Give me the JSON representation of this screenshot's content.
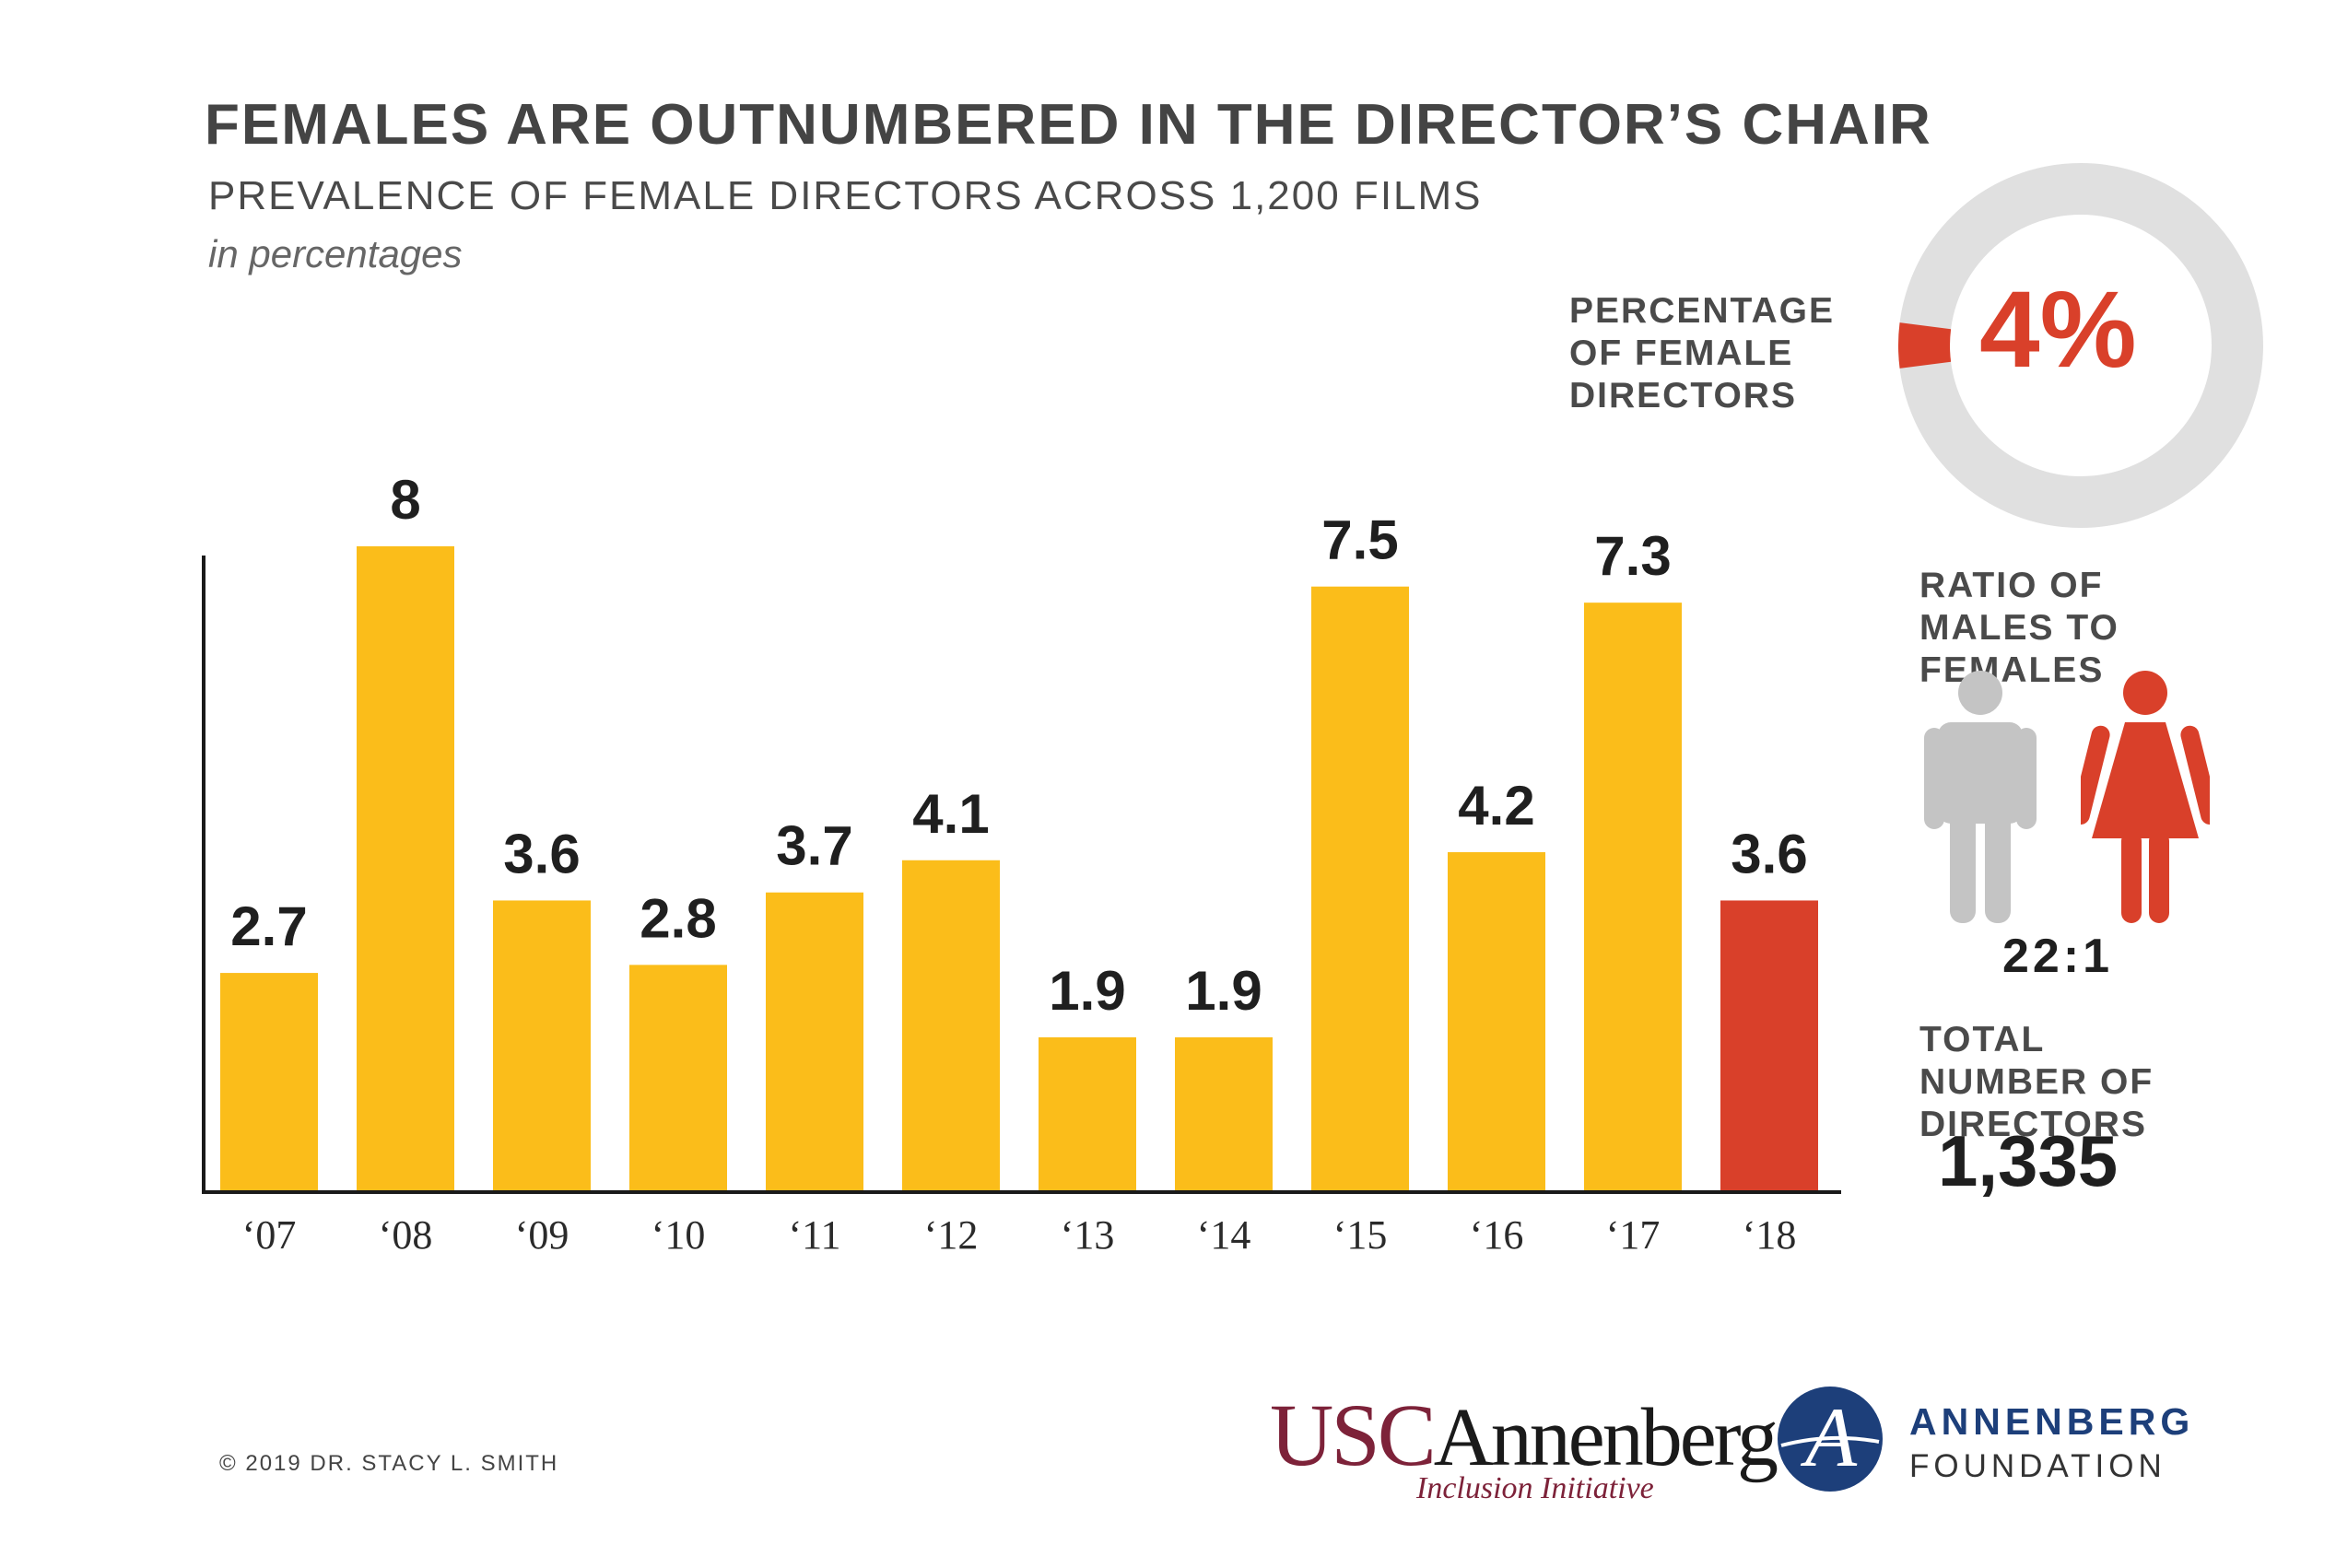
{
  "chart_data": {
    "type": "bar",
    "title": "FEMALES ARE OUTNUMBERED IN THE DIRECTOR’S CHAIR",
    "subtitle": "PREVALENCE OF FEMALE DIRECTORS ACROSS 1,200 FILMS",
    "unit_note": "in percentages",
    "categories": [
      "‘07",
      "‘08",
      "‘09",
      "‘10",
      "‘11",
      "‘12",
      "‘13",
      "‘14",
      "‘15",
      "‘16",
      "‘17",
      "‘18"
    ],
    "values": [
      2.7,
      8,
      3.6,
      2.8,
      3.7,
      4.1,
      1.9,
      1.9,
      7.5,
      4.2,
      7.3,
      3.6
    ],
    "value_labels": [
      "2.7",
      "8",
      "3.6",
      "2.8",
      "3.7",
      "4.1",
      "1.9",
      "1.9",
      "7.5",
      "4.2",
      "7.3",
      "3.6"
    ],
    "ylim": [
      0,
      8
    ],
    "grid": false,
    "colors": {
      "default": "#fbbd1a",
      "highlight": "#d9402a",
      "highlight_index": 11
    }
  },
  "donut": {
    "label": "PERCENTAGE OF FEMALE DIRECTORS",
    "value_text": "4%",
    "fraction": 0.04,
    "colors": {
      "track": "#e0e0e0",
      "highlight": "#d9402a"
    }
  },
  "ratio": {
    "label": "RATIO OF MALES TO FEMALES",
    "value_text": "22:1",
    "icons": [
      "male-figure-icon",
      "female-figure-icon"
    ],
    "colors": {
      "male": "#c4c4c4",
      "female": "#d9402a"
    }
  },
  "total": {
    "label": "TOTAL NUMBER OF DIRECTORS",
    "value_text": "1,335"
  },
  "footer": {
    "copyright": "© 2019 DR. STACY L. SMITH",
    "usc_logo": {
      "usc": "USC",
      "annenberg": "Annenberg",
      "tagline": "Inclusion Initiative"
    },
    "foundation_logo": {
      "line1": "ANNENBERG",
      "line2": "FOUNDATION",
      "mark": "A"
    }
  }
}
